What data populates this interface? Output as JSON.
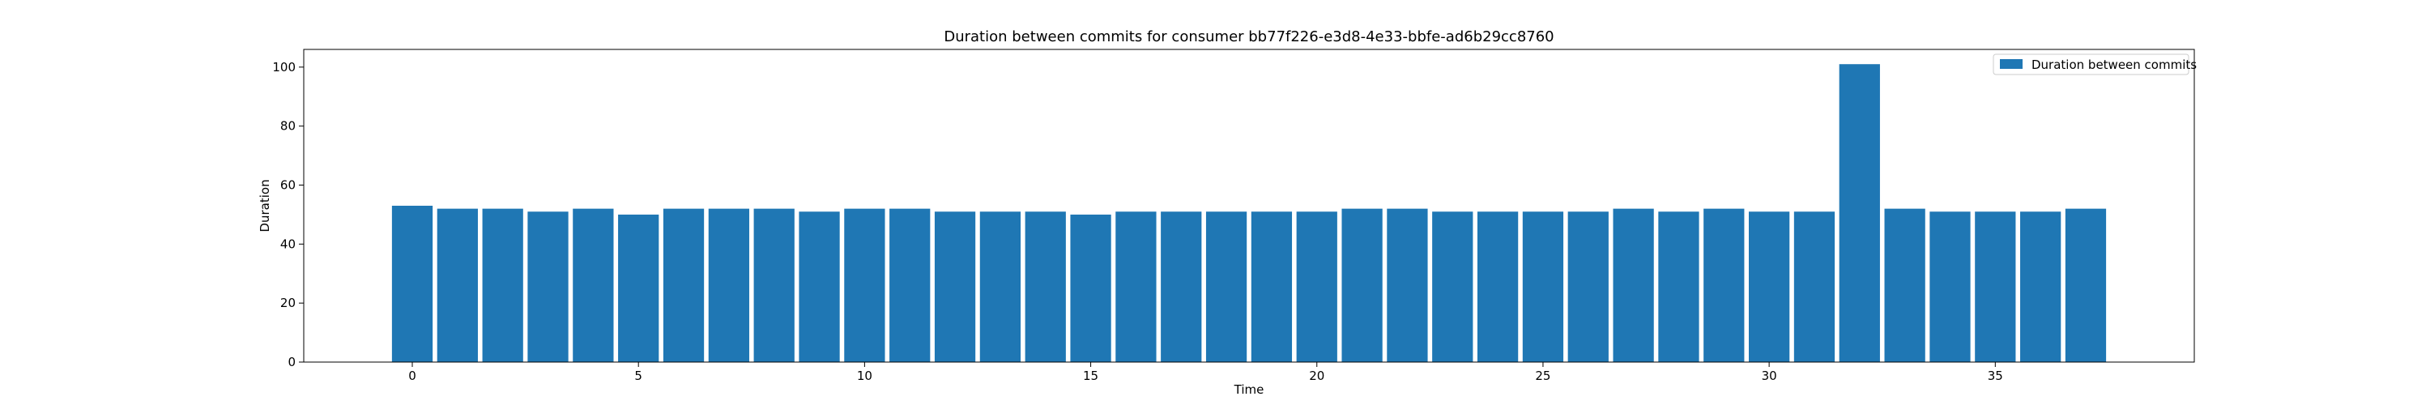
{
  "chart_data": {
    "type": "bar",
    "title": "Duration between commits for consumer bb77f226-e3d8-4e33-bbfe-ad6b29cc8760",
    "xlabel": "Time",
    "ylabel": "Duration",
    "x": [
      0,
      1,
      2,
      3,
      4,
      5,
      6,
      7,
      8,
      9,
      10,
      11,
      12,
      13,
      14,
      15,
      16,
      17,
      18,
      19,
      20,
      21,
      22,
      23,
      24,
      25,
      26,
      27,
      28,
      29,
      30,
      31,
      32,
      33,
      34,
      35,
      36,
      37
    ],
    "series": [
      {
        "name": "Duration between commits",
        "color": "#1f77b4",
        "values": [
          53,
          52,
          52,
          51,
          52,
          50,
          52,
          52,
          52,
          51,
          52,
          52,
          51,
          51,
          51,
          50,
          51,
          51,
          51,
          51,
          51,
          52,
          52,
          51,
          51,
          51,
          51,
          52,
          51,
          52,
          51,
          51,
          101,
          52,
          51,
          51,
          51,
          52
        ]
      }
    ],
    "xlim": [
      -2.4,
      39.4
    ],
    "ylim": [
      0,
      106
    ],
    "xticks": [
      0,
      5,
      10,
      15,
      20,
      25,
      30,
      35
    ],
    "yticks": [
      0,
      20,
      40,
      60,
      80,
      100
    ],
    "grid": false,
    "legend_position": "top-right"
  }
}
